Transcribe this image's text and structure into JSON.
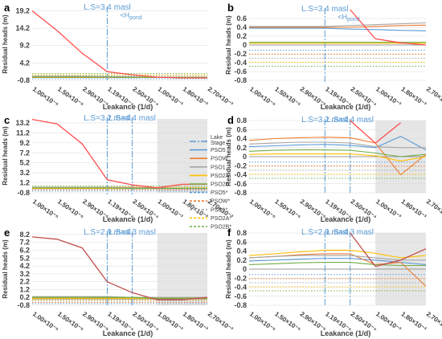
{
  "figure": {
    "x_tick_labels": [
      "1.00×10⁻⁵",
      "1.50×10⁻⁵",
      "2.90×10⁻⁵",
      "1.19×10⁻⁴",
      "2.50×10⁻⁴",
      "1.00×10⁻³",
      "1.80×10⁻³",
      "2.70×10⁻³"
    ],
    "legend": [
      {
        "label": "Lake Stage",
        "color": "#5b9bd5",
        "dash": "8,2,2,2"
      },
      {
        "label": "PSO5",
        "color": "#5b9bd5",
        "dash": ""
      },
      {
        "label": "PSOW",
        "color": "#ed7d31",
        "dash": ""
      },
      {
        "label": "PSO1",
        "color": "#a5a5a5",
        "dash": ""
      },
      {
        "label": "PSO2A",
        "color": "#ffc000",
        "dash": ""
      },
      {
        "label": "PSO2B",
        "color": "#70ad47",
        "dash": ""
      },
      {
        "label": "PSO5*",
        "color": "#5b9bd5",
        "dash": "3,2"
      },
      {
        "label": "PSOW*",
        "color": "#ed7d31",
        "dash": "3,2"
      },
      {
        "label": "PSO1*",
        "color": "#a5a5a5",
        "dash": "3,2"
      },
      {
        "label": "PSO2A*",
        "color": "#ffc000",
        "dash": "3,2"
      },
      {
        "label": "PSO2B*",
        "color": "#70ad47",
        "dash": "3,2"
      }
    ]
  },
  "chart_data": [
    {
      "panel": "a",
      "type": "line",
      "xlabel": "Leakance (1/d)",
      "ylabel": "Residual heads (m)",
      "ylim": [
        -0.8,
        20
      ],
      "yticks": [
        "-0.8",
        "4.2",
        "9.2",
        "14.2",
        "19.2"
      ],
      "annotations": [
        "L.S=3.4 masl",
        "<H_pond"
      ],
      "lake_stage_x": [
        3
      ],
      "shade_from": null,
      "series": [
        {
          "name": "PSO5",
          "color": "#5b9bd5",
          "values": [
            0.3,
            0.3,
            0.2,
            0.2,
            0.15,
            0.1,
            0.1,
            0.1
          ]
        },
        {
          "name": "PSOW",
          "color": "#ed7d31",
          "values": [
            0.2,
            0.2,
            0.2,
            0.15,
            0.1,
            0.05,
            0.05,
            0.05
          ]
        },
        {
          "name": "PSO1",
          "color": "#a5a5a5",
          "values": [
            0.4,
            0.4,
            0.4,
            0.3,
            0.2,
            0.1,
            0.1,
            0.1
          ]
        },
        {
          "name": "PSO2A",
          "color": "#ffc000",
          "values": [
            0.1,
            0.1,
            0.1,
            0.1,
            0.1,
            0.05,
            0.05,
            0.05
          ]
        },
        {
          "name": "PSO2B",
          "color": "#70ad47",
          "values": [
            0.2,
            0.2,
            0.2,
            0.15,
            0.1,
            0.05,
            0.05,
            0.05
          ]
        },
        {
          "name": "Pond",
          "color": "#ff4d4d",
          "values": [
            19.2,
            13.5,
            7.0,
            1.7,
            0.8,
            0.1,
            -0.1,
            -0.1
          ]
        }
      ]
    },
    {
      "panel": "b",
      "type": "line",
      "xlabel": "Leakance (1/d)",
      "ylabel": "Residual heads (m)",
      "ylim": [
        -0.8,
        0.8
      ],
      "yticks": [
        "-0.8",
        "-0.6",
        "-0.4",
        "-0.2",
        "0",
        "0.2",
        "0.4",
        "0.6"
      ],
      "annotations": [
        "L.S=3.4 masl",
        "<H_pond"
      ],
      "lake_stage_x": [
        3
      ],
      "shade_from": null,
      "series": [
        {
          "name": "PSO5",
          "color": "#5b9bd5",
          "values": [
            0.38,
            0.38,
            0.38,
            0.38,
            0.36,
            0.35,
            0.33,
            0.32
          ]
        },
        {
          "name": "PSOW",
          "color": "#ed7d31",
          "values": [
            0.4,
            0.4,
            0.4,
            0.4,
            0.4,
            0.42,
            0.44,
            0.45
          ]
        },
        {
          "name": "PSO1",
          "color": "#a5a5a5",
          "values": [
            0.42,
            0.42,
            0.42,
            0.42,
            0.44,
            0.46,
            0.48,
            0.5
          ]
        },
        {
          "name": "PSO2A",
          "color": "#ffc000",
          "values": [
            0.04,
            0.04,
            0.04,
            0.04,
            0.04,
            0.04,
            0.04,
            0.04
          ]
        },
        {
          "name": "PSO2B",
          "color": "#70ad47",
          "values": [
            0.06,
            0.06,
            0.06,
            0.06,
            0.06,
            0.06,
            0.06,
            0.06
          ]
        },
        {
          "name": "Pond",
          "color": "#ff4d4d",
          "values": [
            null,
            null,
            null,
            null,
            0.85,
            0.14,
            0.05,
            0.0
          ]
        }
      ]
    },
    {
      "panel": "c",
      "type": "line",
      "xlabel": "Leakance (1/d)",
      "ylabel": "Residual heads (m)",
      "ylim": [
        -0.8,
        14
      ],
      "yticks": [
        "-0.8",
        "1.2",
        "3.2",
        "5.2",
        "7.2",
        "9.2",
        "11.2",
        "13.2"
      ],
      "annotations": [
        "L.S=3.2 masl",
        "L.S=4.4 masl"
      ],
      "lake_stage_x": [
        3,
        4
      ],
      "shade_from": 5,
      "series": [
        {
          "name": "PSO5",
          "color": "#5b9bd5",
          "values": [
            0.2,
            0.2,
            0.2,
            0.2,
            0.2,
            0.1,
            0.1,
            0.1
          ]
        },
        {
          "name": "PSOW",
          "color": "#ed7d31",
          "values": [
            0.3,
            0.3,
            0.3,
            0.3,
            0.3,
            0.2,
            0.1,
            0.1
          ]
        },
        {
          "name": "PSO1",
          "color": "#a5a5a5",
          "values": [
            0.3,
            0.3,
            0.3,
            0.3,
            0.2,
            0.2,
            0.1,
            0.1
          ]
        },
        {
          "name": "PSO2A",
          "color": "#ffc000",
          "values": [
            0.1,
            0.1,
            0.1,
            0.1,
            0.1,
            0.1,
            0.1,
            0.1
          ]
        },
        {
          "name": "PSO2B",
          "color": "#70ad47",
          "values": [
            0.2,
            0.2,
            0.2,
            0.2,
            0.1,
            0.1,
            0.1,
            0.1
          ]
        },
        {
          "name": "Pond",
          "color": "#ff4d4d",
          "values": [
            13.9,
            13.0,
            9.0,
            1.8,
            0.8,
            0.2,
            0.9,
            0.9
          ]
        }
      ]
    },
    {
      "panel": "d",
      "type": "line",
      "xlabel": "Leakance (1/d)",
      "ylabel": "Residual heads (m)",
      "ylim": [
        -0.8,
        0.8
      ],
      "yticks": [
        "-0.8",
        "-0.6",
        "-0.4",
        "-0.2",
        "0",
        "0.2",
        "0.4",
        "0.6",
        "0.8"
      ],
      "annotations": [
        "L.S=3.2 masl",
        "L.S=4.4 masl"
      ],
      "lake_stage_x": [
        3,
        4
      ],
      "shade_from": 5,
      "series": [
        {
          "name": "PSO5",
          "color": "#5b9bd5",
          "values": [
            0.22,
            0.24,
            0.26,
            0.27,
            0.25,
            0.2,
            0.45,
            0.15
          ]
        },
        {
          "name": "PSOW",
          "color": "#ed7d31",
          "values": [
            0.36,
            0.4,
            0.42,
            0.43,
            0.42,
            0.3,
            -0.4,
            0.05
          ]
        },
        {
          "name": "PSO1",
          "color": "#a5a5a5",
          "values": [
            0.28,
            0.3,
            0.32,
            0.32,
            0.3,
            0.22,
            0.2,
            0.2
          ]
        },
        {
          "name": "PSO2A",
          "color": "#ffc000",
          "values": [
            0.05,
            0.06,
            0.06,
            0.06,
            0.06,
            0.02,
            -0.1,
            0.0
          ]
        },
        {
          "name": "PSO2B",
          "color": "#70ad47",
          "values": [
            0.12,
            0.14,
            0.15,
            0.15,
            0.14,
            0.08,
            0.0,
            0.05
          ]
        },
        {
          "name": "Pond",
          "color": "#ff4d4d",
          "values": [
            null,
            null,
            null,
            null,
            0.8,
            0.3,
            0.75,
            null
          ]
        }
      ]
    },
    {
      "panel": "e",
      "type": "line",
      "xlabel": "Leakance (1/d)",
      "ylabel": "Residual heads (m)",
      "ylim": [
        -0.8,
        8.4
      ],
      "yticks": [
        "-0.8",
        "0.2",
        "1.2",
        "2.2",
        "3.2",
        "4.2",
        "5.2",
        "6.2",
        "7.2",
        "8.2"
      ],
      "annotations": [
        "L.S=2.9 masl",
        "L.S=4.3 masl"
      ],
      "lake_stage_x": [
        3,
        4
      ],
      "shade_from": 5,
      "series": [
        {
          "name": "PSO5",
          "color": "#5b9bd5",
          "values": [
            0.2,
            0.2,
            0.2,
            0.2,
            0.2,
            0.1,
            0.1,
            0.1
          ]
        },
        {
          "name": "PSOW",
          "color": "#ed7d31",
          "values": [
            0.2,
            0.2,
            0.2,
            0.2,
            0.2,
            0.1,
            0.1,
            0.1
          ]
        },
        {
          "name": "PSO1",
          "color": "#a5a5a5",
          "values": [
            0.3,
            0.3,
            0.3,
            0.3,
            0.2,
            0.2,
            0.2,
            0.2
          ]
        },
        {
          "name": "PSO2A",
          "color": "#ffc000",
          "values": [
            0.1,
            0.1,
            0.1,
            0.1,
            0.1,
            0.1,
            0.1,
            0.1
          ]
        },
        {
          "name": "PSO2B",
          "color": "#70ad47",
          "values": [
            0.2,
            0.2,
            0.2,
            0.2,
            0.2,
            0.1,
            0.1,
            0.1
          ]
        },
        {
          "name": "Pond",
          "color": "#c0504d",
          "values": [
            7.9,
            7.6,
            6.5,
            2.2,
            0.8,
            -0.1,
            -0.1,
            0.2
          ]
        }
      ]
    },
    {
      "panel": "f",
      "type": "line",
      "xlabel": "Leakance (1/d)",
      "ylabel": "Residual heads (m)",
      "ylim": [
        -0.8,
        0.8
      ],
      "yticks": [
        "-0.8",
        "-0.6",
        "-0.4",
        "-0.2",
        "0",
        "0.2",
        "0.4",
        "0.6",
        "0.8"
      ],
      "annotations": [
        "L.S=2.9 masl",
        "L.S=4.3 masl"
      ],
      "lake_stage_x": [
        3,
        4
      ],
      "shade_from": 5,
      "series": [
        {
          "name": "PSO5",
          "color": "#5b9bd5",
          "values": [
            0.18,
            0.2,
            0.22,
            0.24,
            0.24,
            0.2,
            0.15,
            0.1
          ]
        },
        {
          "name": "PSOW",
          "color": "#ed7d31",
          "values": [
            0.25,
            0.28,
            0.32,
            0.34,
            0.34,
            0.1,
            0.15,
            -0.38
          ]
        },
        {
          "name": "PSO1",
          "color": "#a5a5a5",
          "values": [
            0.25,
            0.28,
            0.3,
            0.3,
            0.3,
            0.25,
            0.2,
            0.2
          ]
        },
        {
          "name": "PSO2A",
          "color": "#ffc000",
          "values": [
            0.3,
            0.34,
            0.38,
            0.42,
            0.42,
            0.35,
            0.25,
            0.3
          ]
        },
        {
          "name": "PSO2B",
          "color": "#70ad47",
          "values": [
            0.1,
            0.12,
            0.14,
            0.15,
            0.15,
            0.1,
            0.08,
            0.08
          ]
        },
        {
          "name": "Pond",
          "color": "#c0504d",
          "values": [
            null,
            null,
            null,
            null,
            0.8,
            0.06,
            0.2,
            0.45
          ]
        }
      ]
    }
  ]
}
